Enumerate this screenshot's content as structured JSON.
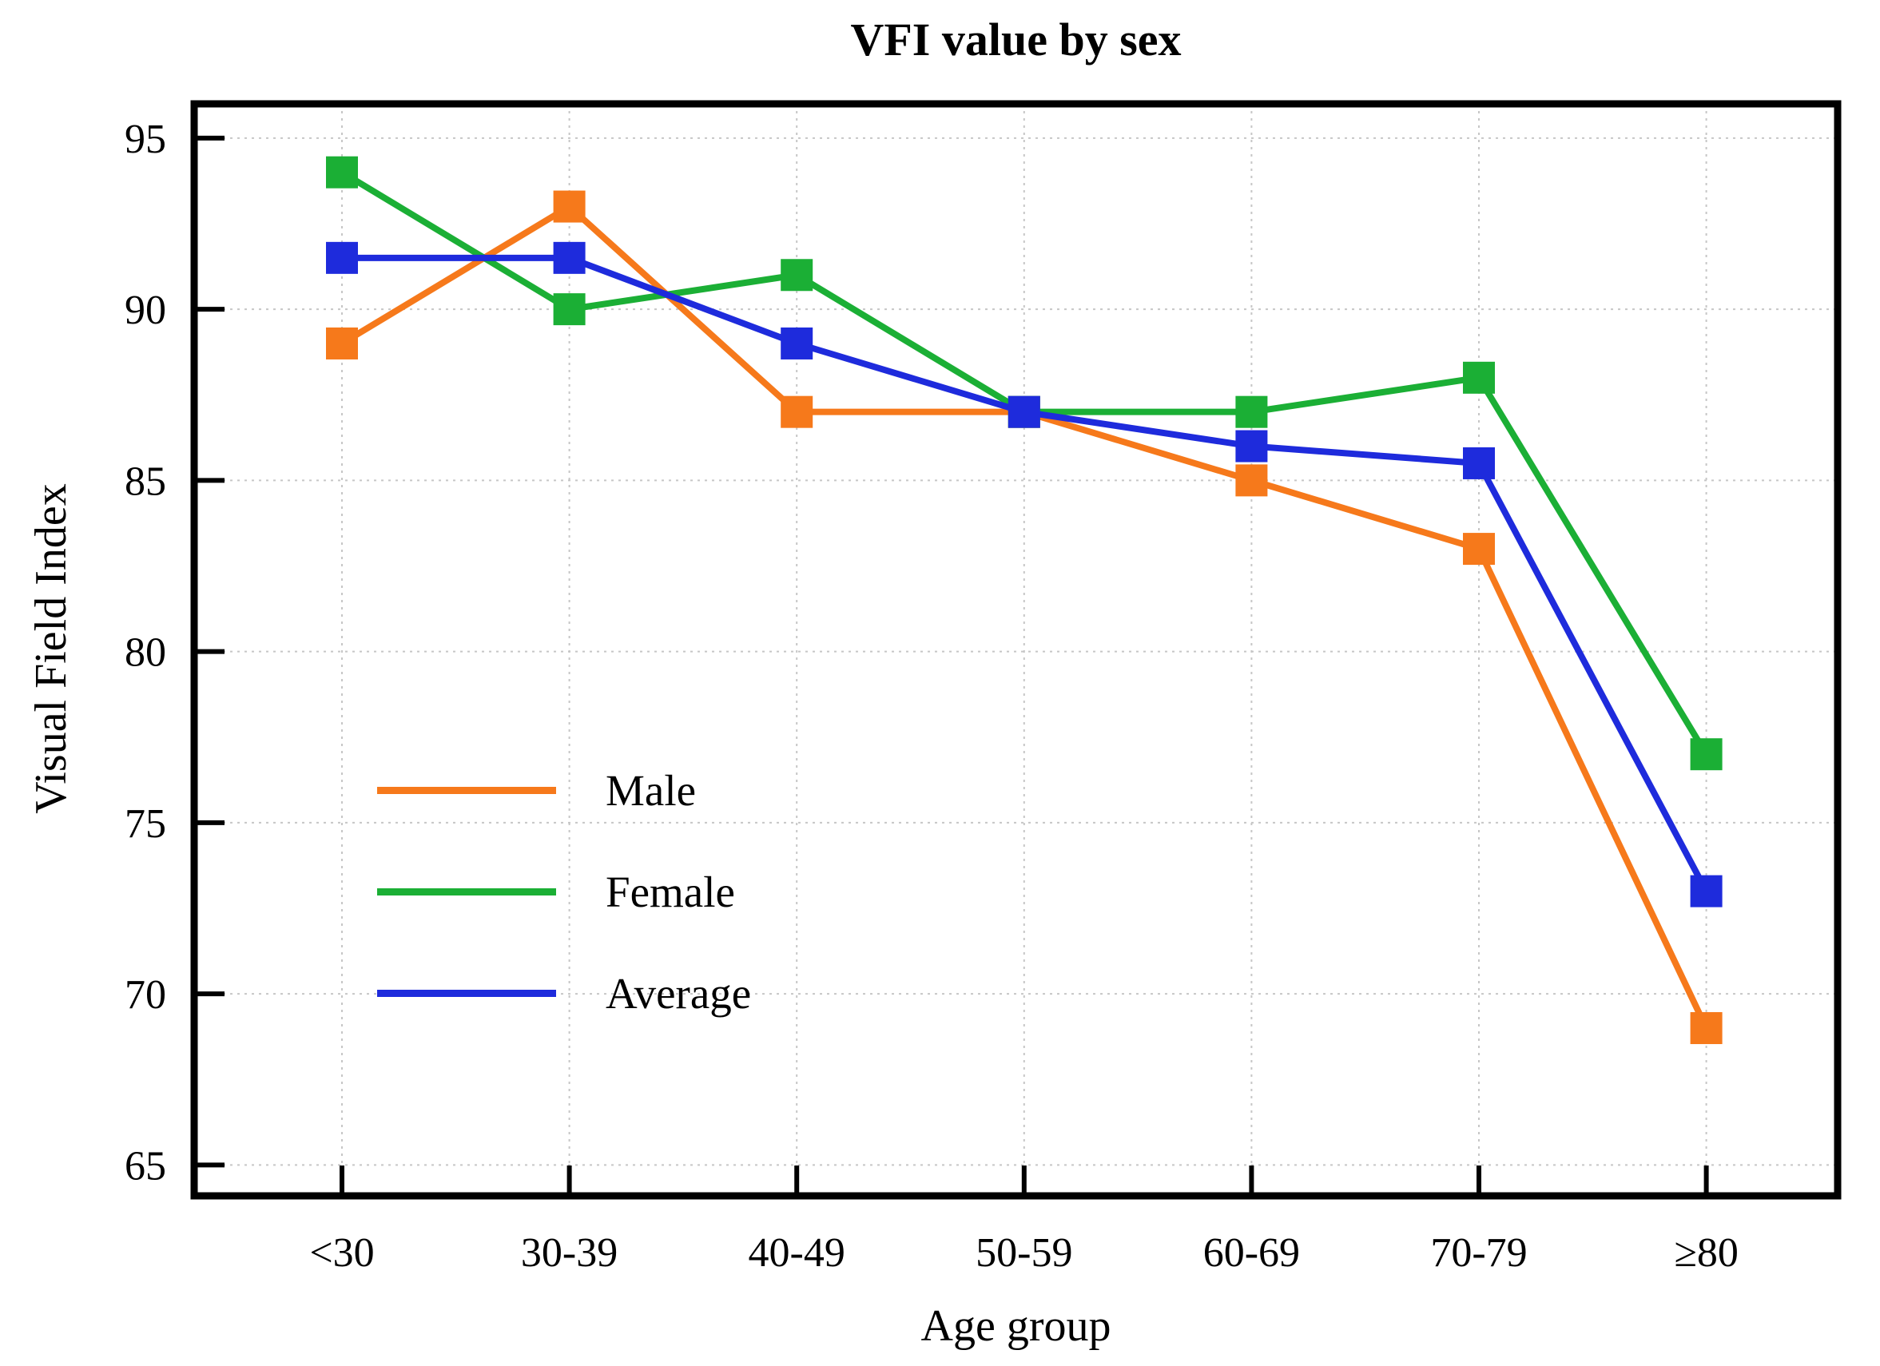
{
  "chart_data": {
    "type": "line",
    "title": "VFI value by sex",
    "xlabel": "Age group",
    "ylabel": "Visual Field Index",
    "categories": [
      "<30",
      "30-39",
      "40-49",
      "50-59",
      "60-69",
      "70-79",
      "≥80"
    ],
    "series": [
      {
        "name": "Male",
        "color": "#F6791B",
        "values": [
          89,
          93,
          87,
          87,
          85,
          83,
          69
        ]
      },
      {
        "name": "Female",
        "color": "#1BAF35",
        "values": [
          94,
          90,
          91,
          87,
          87,
          88,
          77
        ]
      },
      {
        "name": "Average",
        "color": "#1E2BDC",
        "values": [
          91.5,
          91.5,
          89,
          87,
          86,
          85.5,
          73
        ]
      }
    ],
    "y_ticks": [
      95,
      90,
      85,
      80,
      75,
      70,
      65
    ],
    "ylim": [
      64.1,
      96.0
    ],
    "marker": "square",
    "grid": true,
    "grid_color": "#c6c6c6",
    "frame_color": "#000000",
    "legend_position": "inside-left",
    "legend_entries": [
      "Male",
      "Female",
      "Average"
    ]
  }
}
